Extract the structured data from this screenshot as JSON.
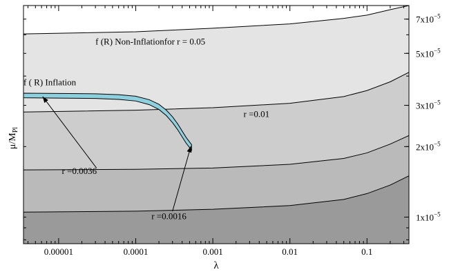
{
  "chart_data": {
    "type": "area",
    "title": "",
    "xlabel": "λ",
    "ylabel": "μ/M",
    "ylabel_sub": "Pl",
    "x_scale": "log",
    "y_scale": "log",
    "xlim": [
      3.5e-06,
      0.35
    ],
    "ylim": [
      7.7e-06,
      8e-05
    ],
    "x_ticks": [
      {
        "value": 1e-05,
        "label": "0.00001"
      },
      {
        "value": 0.0001,
        "label": "0.0001"
      },
      {
        "value": 0.001,
        "label": "0.001"
      },
      {
        "value": 0.01,
        "label": "0.01"
      },
      {
        "value": 0.1,
        "label": "0.1"
      }
    ],
    "y_ticks_right": [
      {
        "value": 1e-05,
        "mant": "1x10",
        "exp": "−5"
      },
      {
        "value": 2e-05,
        "mant": "2x10",
        "exp": "−5"
      },
      {
        "value": 3e-05,
        "mant": "3x10",
        "exp": "−5"
      },
      {
        "value": 5e-05,
        "mant": "5x10",
        "exp": "−5"
      },
      {
        "value": 7e-05,
        "mant": "7x10",
        "exp": "−5"
      }
    ],
    "bands": [
      {
        "r": 0.05,
        "fill": "#e4e4e4",
        "x": [
          3.5e-06,
          0.0001,
          0.001,
          0.01,
          0.05,
          0.1,
          0.2,
          0.35
        ],
        "y": [
          6.05e-05,
          6.18e-05,
          6.4e-05,
          6.68e-05,
          7.05e-05,
          7.28e-05,
          7.68e-05,
          8e-05
        ]
      },
      {
        "r": 0.01,
        "fill": "#cdcdcd",
        "x": [
          3.5e-06,
          0.0001,
          0.001,
          0.01,
          0.05,
          0.1,
          0.2,
          0.35
        ],
        "y": [
          2.81e-05,
          2.86e-05,
          2.93e-05,
          3.06e-05,
          3.27e-05,
          3.47e-05,
          3.78e-05,
          4.15e-05
        ]
      },
      {
        "r": 0.0036,
        "fill": "#bababa",
        "x": [
          3.5e-06,
          0.0001,
          0.001,
          0.01,
          0.05,
          0.1,
          0.2,
          0.35
        ],
        "y": [
          1.59e-05,
          1.6e-05,
          1.62e-05,
          1.68e-05,
          1.78e-05,
          1.88e-05,
          2.05e-05,
          2.23e-05
        ]
      },
      {
        "r": 0.0016,
        "fill": "#9a9a9a",
        "x": [
          3.5e-06,
          0.0001,
          0.001,
          0.01,
          0.05,
          0.1,
          0.2,
          0.35
        ],
        "y": [
          1.05e-05,
          1.06e-05,
          1.08e-05,
          1.12e-05,
          1.19e-05,
          1.26e-05,
          1.37e-05,
          1.5e-05
        ]
      }
    ],
    "inflation_curve": {
      "color": "#8fd0df",
      "x": [
        3.5e-06,
        1e-05,
        3e-05,
        6e-05,
        0.0001,
        0.00015,
        0.0002,
        0.00025,
        0.0003,
        0.00035,
        0.0004,
        0.00045,
        0.0005,
        0.00053
      ],
      "y_upper": [
        3.38e-05,
        3.37e-05,
        3.36e-05,
        3.33e-05,
        3.28e-05,
        3.17e-05,
        3.03e-05,
        2.86e-05,
        2.68e-05,
        2.5e-05,
        2.33e-05,
        2.19e-05,
        2.09e-05,
        2.04e-05
      ],
      "y_lower": [
        3.23e-05,
        3.22e-05,
        3.21e-05,
        3.18e-05,
        3.13e-05,
        3.02e-05,
        2.88e-05,
        2.71e-05,
        2.53e-05,
        2.36e-05,
        2.2e-05,
        2.07e-05,
        1.98e-05,
        1.93e-05
      ]
    },
    "annotations": [
      {
        "id": "nonInfl",
        "text": "f (R) Non-Inflationfor  r = 0.05",
        "x": 3e-05,
        "y": 5.45e-05
      },
      {
        "id": "infl",
        "text": "f ( R)   Inflation",
        "x": 3.5e-06,
        "y": 3.65e-05
      },
      {
        "id": "r001",
        "text": "r =0.01",
        "x": 0.0025,
        "y": 2.67e-05
      },
      {
        "id": "r0036",
        "text": "r =0.0036",
        "x": 1.1e-05,
        "y": 1.53e-05
      },
      {
        "id": "r0016",
        "text": "r =0.0016",
        "x": 0.00016,
        "y": 9.8e-06
      }
    ],
    "arrows": [
      {
        "from": [
          3.1e-05,
          1.62e-05
        ],
        "to": [
          6.2e-06,
          3.27e-05
        ]
      },
      {
        "from": [
          0.0003,
          1.06e-05
        ],
        "to": [
          0.00052,
          2.01e-05
        ]
      }
    ]
  }
}
